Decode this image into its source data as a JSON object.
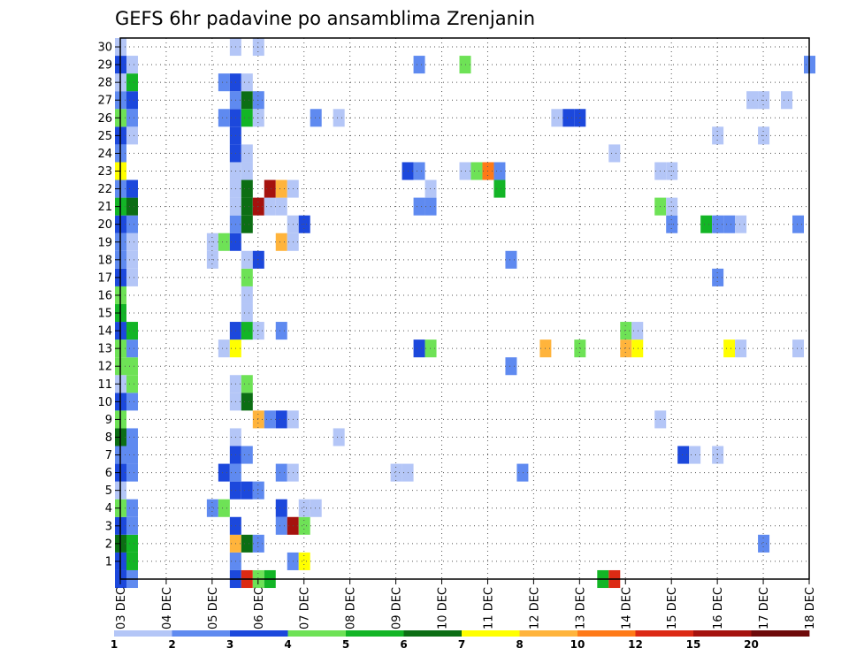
{
  "chart_data": {
    "type": "heatmap",
    "title": "GEFS 6hr padavine po ansamblima Zrenjanin",
    "xlabel": "",
    "ylabel": "",
    "x_range": [
      0,
      60
    ],
    "y_range": [
      0,
      30
    ],
    "x_ticks": [
      {
        "x": 0,
        "label": "03 DEC"
      },
      {
        "x": 4,
        "label": "04 DEC"
      },
      {
        "x": 8,
        "label": "05 DEC"
      },
      {
        "x": 12,
        "label": "06 DEC"
      },
      {
        "x": 16,
        "label": "07 DEC"
      },
      {
        "x": 20,
        "label": "08 DEC"
      },
      {
        "x": 24,
        "label": "09 DEC"
      },
      {
        "x": 28,
        "label": "10 DEC"
      },
      {
        "x": 32,
        "label": "11 DEC"
      },
      {
        "x": 36,
        "label": "12 DEC"
      },
      {
        "x": 40,
        "label": "13 DEC"
      },
      {
        "x": 44,
        "label": "14 DEC"
      },
      {
        "x": 48,
        "label": "15 DEC"
      },
      {
        "x": 52,
        "label": "16 DEC"
      },
      {
        "x": 56,
        "label": "17 DEC"
      },
      {
        "x": 60,
        "label": "18 DEC"
      }
    ],
    "y_ticks": [
      "1",
      "2",
      "3",
      "4",
      "5",
      "6",
      "7",
      "8",
      "9",
      "10",
      "11",
      "12",
      "13",
      "14",
      "15",
      "16",
      "17",
      "18",
      "19",
      "20",
      "21",
      "22",
      "23",
      "24",
      "25",
      "26",
      "27",
      "28",
      "29",
      "30"
    ],
    "grid": true,
    "colorbar": {
      "labels": [
        "1",
        "2",
        "3",
        "4",
        "5",
        "6",
        "7",
        "8",
        "10",
        "12",
        "15",
        "20"
      ],
      "colors": [
        "#b4c6f7",
        "#5f8af0",
        "#1c48dc",
        "#6ee256",
        "#13b526",
        "#0c6e14",
        "#ffff00",
        "#ffb43c",
        "#ff7a18",
        "#dc2a14",
        "#a5120e",
        "#6e0a0a"
      ]
    },
    "cells": [
      [
        0,
        0,
        2
      ],
      [
        1,
        0,
        1
      ],
      [
        10,
        0,
        2
      ],
      [
        11,
        0,
        9
      ],
      [
        12,
        0,
        3
      ],
      [
        13,
        0,
        4
      ],
      [
        42,
        0,
        4
      ],
      [
        43,
        0,
        9
      ],
      [
        0,
        1,
        2
      ],
      [
        1,
        1,
        4
      ],
      [
        10,
        1,
        1
      ],
      [
        15,
        1,
        1
      ],
      [
        16,
        1,
        6
      ],
      [
        0,
        2,
        5
      ],
      [
        1,
        2,
        4
      ],
      [
        10,
        2,
        7
      ],
      [
        11,
        2,
        5
      ],
      [
        12,
        2,
        1
      ],
      [
        56,
        2,
        1
      ],
      [
        0,
        3,
        2
      ],
      [
        1,
        3,
        1
      ],
      [
        10,
        3,
        2
      ],
      [
        14,
        3,
        1
      ],
      [
        15,
        3,
        10
      ],
      [
        16,
        3,
        3
      ],
      [
        0,
        4,
        3
      ],
      [
        1,
        4,
        1
      ],
      [
        8,
        4,
        1
      ],
      [
        9,
        4,
        3
      ],
      [
        14,
        4,
        2
      ],
      [
        16,
        4,
        0
      ],
      [
        17,
        4,
        0
      ],
      [
        0,
        5,
        0
      ],
      [
        10,
        5,
        2
      ],
      [
        11,
        5,
        2
      ],
      [
        12,
        5,
        1
      ],
      [
        0,
        6,
        2
      ],
      [
        1,
        6,
        1
      ],
      [
        9,
        6,
        2
      ],
      [
        10,
        6,
        1
      ],
      [
        14,
        6,
        1
      ],
      [
        15,
        6,
        0
      ],
      [
        24,
        6,
        0
      ],
      [
        25,
        6,
        0
      ],
      [
        35,
        6,
        1
      ],
      [
        0,
        7,
        1
      ],
      [
        1,
        7,
        1
      ],
      [
        10,
        7,
        2
      ],
      [
        11,
        7,
        1
      ],
      [
        49,
        7,
        2
      ],
      [
        50,
        7,
        0
      ],
      [
        52,
        7,
        0
      ],
      [
        0,
        8,
        5
      ],
      [
        1,
        8,
        1
      ],
      [
        10,
        8,
        0
      ],
      [
        19,
        8,
        0
      ],
      [
        0,
        9,
        3
      ],
      [
        12,
        9,
        7
      ],
      [
        13,
        9,
        1
      ],
      [
        14,
        9,
        2
      ],
      [
        15,
        9,
        0
      ],
      [
        47,
        9,
        0
      ],
      [
        0,
        10,
        2
      ],
      [
        1,
        10,
        1
      ],
      [
        10,
        10,
        0
      ],
      [
        11,
        10,
        5
      ],
      [
        0,
        11,
        0
      ],
      [
        1,
        11,
        3
      ],
      [
        10,
        11,
        0
      ],
      [
        11,
        11,
        3
      ],
      [
        0,
        12,
        3
      ],
      [
        1,
        12,
        3
      ],
      [
        34,
        12,
        1
      ],
      [
        0,
        13,
        3
      ],
      [
        1,
        13,
        1
      ],
      [
        9,
        13,
        0
      ],
      [
        10,
        13,
        6
      ],
      [
        26,
        13,
        2
      ],
      [
        27,
        13,
        3
      ],
      [
        37,
        13,
        7
      ],
      [
        40,
        13,
        3
      ],
      [
        44,
        13,
        7
      ],
      [
        45,
        13,
        6
      ],
      [
        53,
        13,
        6
      ],
      [
        54,
        13,
        0
      ],
      [
        59,
        13,
        0
      ],
      [
        0,
        14,
        2
      ],
      [
        1,
        14,
        4
      ],
      [
        10,
        14,
        2
      ],
      [
        11,
        14,
        4
      ],
      [
        12,
        14,
        0
      ],
      [
        14,
        14,
        1
      ],
      [
        44,
        14,
        3
      ],
      [
        45,
        14,
        0
      ],
      [
        0,
        15,
        4
      ],
      [
        11,
        15,
        0
      ],
      [
        0,
        16,
        3
      ],
      [
        11,
        16,
        0
      ],
      [
        0,
        17,
        2
      ],
      [
        1,
        17,
        0
      ],
      [
        11,
        17,
        3
      ],
      [
        52,
        17,
        1
      ],
      [
        0,
        18,
        1
      ],
      [
        1,
        18,
        0
      ],
      [
        8,
        18,
        0
      ],
      [
        11,
        18,
        0
      ],
      [
        12,
        18,
        2
      ],
      [
        34,
        18,
        1
      ],
      [
        0,
        19,
        1
      ],
      [
        1,
        19,
        0
      ],
      [
        8,
        19,
        0
      ],
      [
        9,
        19,
        3
      ],
      [
        10,
        19,
        2
      ],
      [
        14,
        19,
        7
      ],
      [
        15,
        19,
        0
      ],
      [
        0,
        20,
        2
      ],
      [
        1,
        20,
        1
      ],
      [
        10,
        20,
        1
      ],
      [
        11,
        20,
        5
      ],
      [
        15,
        20,
        0
      ],
      [
        16,
        20,
        2
      ],
      [
        48,
        20,
        1
      ],
      [
        51,
        20,
        4
      ],
      [
        52,
        20,
        1
      ],
      [
        53,
        20,
        1
      ],
      [
        54,
        20,
        0
      ],
      [
        59,
        20,
        1
      ],
      [
        0,
        21,
        4
      ],
      [
        1,
        21,
        5
      ],
      [
        10,
        21,
        0
      ],
      [
        11,
        21,
        5
      ],
      [
        12,
        21,
        10
      ],
      [
        13,
        21,
        0
      ],
      [
        14,
        21,
        0
      ],
      [
        26,
        21,
        1
      ],
      [
        27,
        21,
        1
      ],
      [
        47,
        21,
        3
      ],
      [
        48,
        21,
        0
      ],
      [
        0,
        22,
        1
      ],
      [
        1,
        22,
        2
      ],
      [
        10,
        22,
        0
      ],
      [
        11,
        22,
        5
      ],
      [
        13,
        22,
        10
      ],
      [
        14,
        22,
        7
      ],
      [
        15,
        22,
        0
      ],
      [
        27,
        22,
        0
      ],
      [
        33,
        22,
        4
      ],
      [
        0,
        23,
        6
      ],
      [
        10,
        23,
        0
      ],
      [
        11,
        23,
        0
      ],
      [
        25,
        23,
        2
      ],
      [
        26,
        23,
        1
      ],
      [
        30,
        23,
        0
      ],
      [
        31,
        23,
        3
      ],
      [
        32,
        23,
        8
      ],
      [
        33,
        23,
        1
      ],
      [
        47,
        23,
        0
      ],
      [
        48,
        23,
        0
      ],
      [
        0,
        24,
        1
      ],
      [
        10,
        24,
        2
      ],
      [
        11,
        24,
        0
      ],
      [
        43,
        24,
        0
      ],
      [
        0,
        25,
        2
      ],
      [
        1,
        25,
        0
      ],
      [
        10,
        25,
        2
      ],
      [
        52,
        25,
        0
      ],
      [
        56,
        25,
        0
      ],
      [
        0,
        26,
        3
      ],
      [
        1,
        26,
        1
      ],
      [
        9,
        26,
        1
      ],
      [
        10,
        26,
        2
      ],
      [
        11,
        26,
        4
      ],
      [
        12,
        26,
        0
      ],
      [
        17,
        26,
        1
      ],
      [
        19,
        26,
        0
      ],
      [
        38,
        26,
        0
      ],
      [
        39,
        26,
        2
      ],
      [
        40,
        26,
        2
      ],
      [
        0,
        27,
        1
      ],
      [
        1,
        27,
        2
      ],
      [
        10,
        27,
        1
      ],
      [
        11,
        27,
        5
      ],
      [
        12,
        27,
        1
      ],
      [
        55,
        27,
        0
      ],
      [
        56,
        27,
        0
      ],
      [
        58,
        27,
        0
      ],
      [
        0,
        28,
        0
      ],
      [
        1,
        28,
        4
      ],
      [
        9,
        28,
        1
      ],
      [
        10,
        28,
        2
      ],
      [
        11,
        28,
        0
      ],
      [
        0,
        29,
        2
      ],
      [
        1,
        29,
        0
      ],
      [
        26,
        29,
        1
      ],
      [
        30,
        29,
        3
      ],
      [
        60,
        29,
        1
      ],
      [
        0,
        30,
        0
      ],
      [
        10,
        30,
        0
      ],
      [
        12,
        30,
        0
      ]
    ]
  }
}
